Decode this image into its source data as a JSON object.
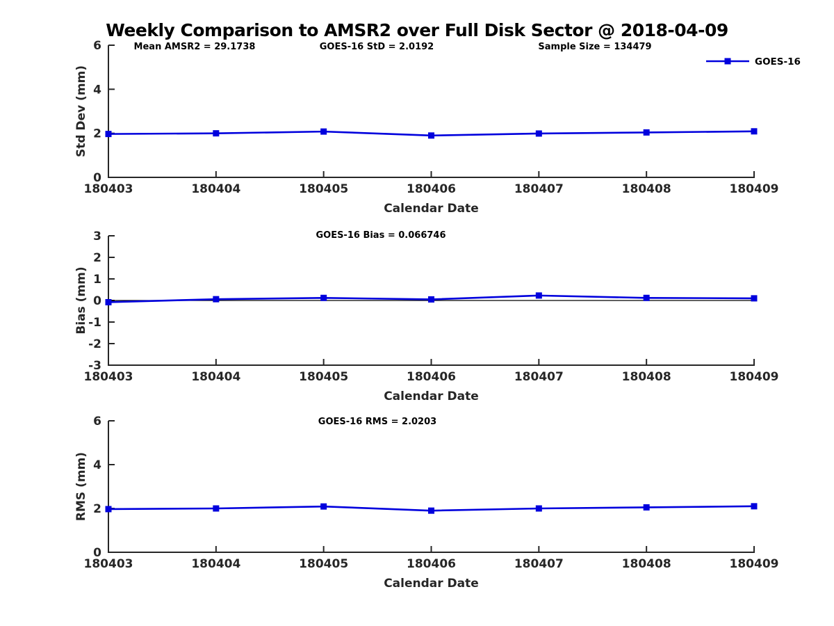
{
  "title": "Weekly Comparison to AMSR2 over Full Disk Sector @ 2018-04-09",
  "colors": {
    "series": "#0000dd",
    "text": "#000000",
    "axis": "#262626",
    "background": "#ffffff"
  },
  "chart_data": [
    {
      "id": "stddev",
      "type": "line",
      "ylabel": "Std Dev (mm)",
      "xlabel": "Calendar Date",
      "categories": [
        "180403",
        "180404",
        "180405",
        "180406",
        "180407",
        "180408",
        "180409"
      ],
      "ylim": [
        0,
        6
      ],
      "yticks": [
        0,
        2,
        4,
        6
      ],
      "grid": false,
      "zero_line": false,
      "series": [
        {
          "name": "GOES-16",
          "color": "#0000dd",
          "marker": "square",
          "values": [
            1.97,
            2.0,
            2.08,
            1.9,
            1.99,
            2.04,
            2.09
          ]
        }
      ],
      "annotations": [
        "Mean AMSR2 = 29.1738",
        "GOES-16 StD = 2.0192",
        "Sample Size = 134479"
      ],
      "legend": {
        "visible": true,
        "label": "GOES-16",
        "position": "top-right"
      }
    },
    {
      "id": "bias",
      "type": "line",
      "ylabel": "Bias (mm)",
      "xlabel": "Calendar Date",
      "categories": [
        "180403",
        "180404",
        "180405",
        "180406",
        "180407",
        "180408",
        "180409"
      ],
      "ylim": [
        -3,
        3
      ],
      "yticks": [
        -3,
        -2,
        -1,
        0,
        1,
        2,
        3
      ],
      "grid": false,
      "zero_line": true,
      "series": [
        {
          "name": "GOES-16",
          "color": "#0000dd",
          "marker": "square",
          "values": [
            -0.08,
            0.06,
            0.12,
            0.05,
            0.23,
            0.12,
            0.1
          ]
        }
      ],
      "annotations": [
        "GOES-16 Bias  = 0.066746"
      ],
      "legend": {
        "visible": false,
        "label": "GOES-16",
        "position": "top-right"
      }
    },
    {
      "id": "rms",
      "type": "line",
      "ylabel": "RMS (mm)",
      "xlabel": "Calendar Date",
      "categories": [
        "180403",
        "180404",
        "180405",
        "180406",
        "180407",
        "180408",
        "180409"
      ],
      "ylim": [
        0,
        6
      ],
      "yticks": [
        0,
        2,
        4,
        6
      ],
      "grid": false,
      "zero_line": false,
      "series": [
        {
          "name": "GOES-16",
          "color": "#0000dd",
          "marker": "square",
          "values": [
            1.97,
            2.0,
            2.09,
            1.9,
            2.0,
            2.05,
            2.1
          ]
        }
      ],
      "annotations": [
        "GOES-16 RMS = 2.0203"
      ],
      "legend": {
        "visible": false,
        "label": "GOES-16",
        "position": "top-right"
      }
    }
  ]
}
